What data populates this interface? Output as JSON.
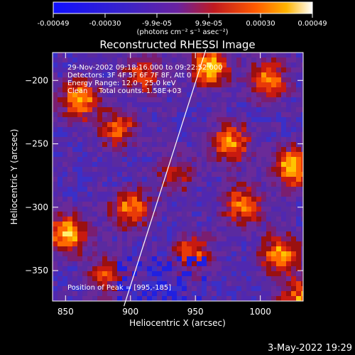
{
  "chart_data": {
    "type": "heatmap",
    "title": "Reconstructed RHESSI Image",
    "xlabel": "Heliocentric X (arcsec)",
    "ylabel": "Heliocentric Y (arcsec)",
    "xlim": [
      840,
      1033
    ],
    "ylim": [
      -374,
      -178
    ],
    "x_ticks": [
      850,
      900,
      950,
      1000
    ],
    "y_ticks": [
      -200,
      -250,
      -300,
      -350
    ],
    "colorbar": {
      "colormap": "rainbow-hot (blue-purple-red-orange-yellow-white)",
      "range": [
        -0.00049,
        0.00049
      ],
      "tick_labels": [
        "-0.00049",
        "-0.00030",
        "-9.9e-05",
        "9.9e-05",
        "0.00030",
        "0.00049"
      ],
      "unit_label": "(photons cm⁻² s⁻¹ asec⁻²)"
    },
    "annotations": [
      "29-Nov-2002 09:18:16.000 to 09:22:52.000",
      "Detectors: 3F 4F 5F 6F 7F 8F, Att 0",
      "Energy Range: 12.0 - 25.0 keV",
      "Clean     Total counts: 1.58E+03"
    ],
    "peak_label": "Position of Peak = [995,-185]",
    "peak_position": [
      995,
      -185
    ],
    "limb_line": [
      [
        895,
        -378
      ],
      [
        958,
        -176
      ]
    ],
    "grid": false
  },
  "timestamp": "3-May-2022 19:29"
}
